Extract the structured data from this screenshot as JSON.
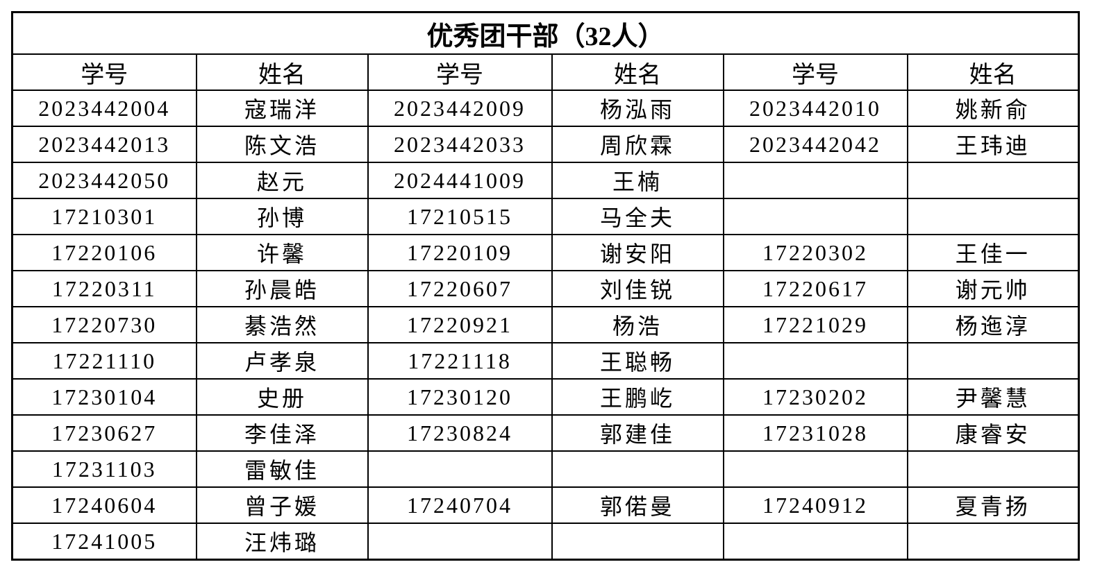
{
  "title": "优秀团干部（32人）",
  "headers": [
    "学号",
    "姓名",
    "学号",
    "姓名",
    "学号",
    "姓名"
  ],
  "rows": [
    [
      "2023442004",
      "寇瑞洋",
      "2023442009",
      "杨泓雨",
      "2023442010",
      "姚新俞"
    ],
    [
      "2023442013",
      "陈文浩",
      "2023442033",
      "周欣霖",
      "2023442042",
      "王玮迪"
    ],
    [
      "2023442050",
      "赵元",
      "2024441009",
      "王楠",
      "",
      ""
    ],
    [
      "17210301",
      "孙博",
      "17210515",
      "马全夫",
      "",
      ""
    ],
    [
      "17220106",
      "许馨",
      "17220109",
      "谢安阳",
      "17220302",
      "王佳一"
    ],
    [
      "17220311",
      "孙晨皓",
      "17220607",
      "刘佳锐",
      "17220617",
      "谢元帅"
    ],
    [
      "17220730",
      "綦浩然",
      "17220921",
      "杨浩",
      "17221029",
      "杨迤淳"
    ],
    [
      "17221110",
      "卢孝泉",
      "17221118",
      "王聪畅",
      "",
      ""
    ],
    [
      "17230104",
      "史册",
      "17230120",
      "王鹏屹",
      "17230202",
      "尹馨慧"
    ],
    [
      "17230627",
      "李佳泽",
      "17230824",
      "郭建佳",
      "17231028",
      "康睿安"
    ],
    [
      "17231103",
      "雷敏佳",
      "",
      "",
      "",
      ""
    ],
    [
      "17240604",
      "曾子媛",
      "17240704",
      "郭偌曼",
      "17240912",
      "夏青扬"
    ],
    [
      "17241005",
      "汪炜璐",
      "",
      "",
      "",
      ""
    ]
  ]
}
